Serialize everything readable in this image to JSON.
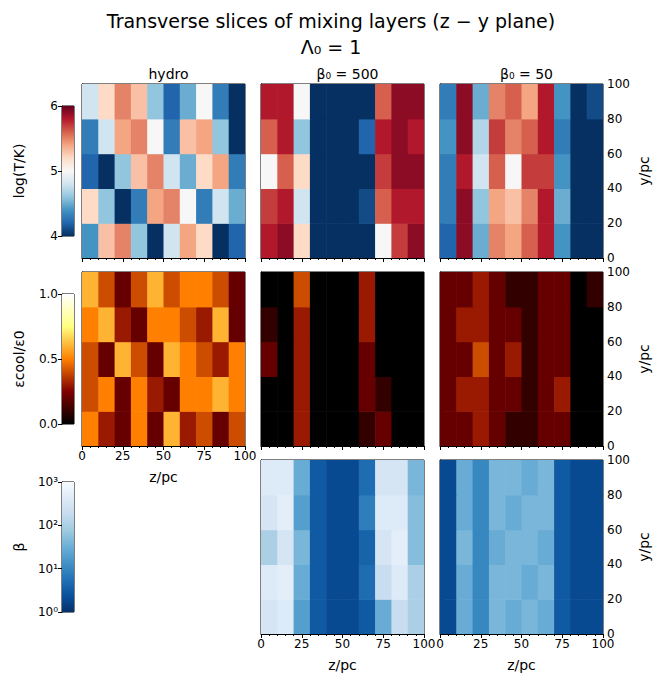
{
  "chart_data": {
    "type": "heatmap",
    "title": "Transverse slices of mixing layers (z − y plane)",
    "subtitle": "Λ₀ = 1",
    "column_titles": [
      "hydro",
      "β₀ = 500",
      "β₀ = 50"
    ],
    "xlabel": "z/pc",
    "ylabel": "y/pc",
    "xlim": [
      0,
      100
    ],
    "xticks": [
      0,
      25,
      50,
      75,
      100
    ],
    "ylim": [
      0,
      100
    ],
    "yticks": [
      0,
      20,
      40,
      60,
      80,
      100
    ],
    "x": [
      5,
      15,
      25,
      35,
      45,
      55,
      65,
      75,
      85,
      95
    ],
    "y": [
      10,
      30,
      50,
      70,
      90
    ],
    "rows": [
      {
        "colorbar": {
          "label": "log(T/K)",
          "range": [
            4,
            6
          ],
          "ticks": [
            4,
            5,
            6
          ],
          "colors": [
            "#053061",
            "#2166ac",
            "#4393c3",
            "#92c5de",
            "#d1e5f0",
            "#f7f7f7",
            "#fddbc7",
            "#f4a582",
            "#d6604d",
            "#b2182b",
            "#67001f"
          ]
        },
        "cells": [
          [
            [
              4.4,
              5.3,
              5.5,
              4.6,
              4.0,
              4.8,
              5.4,
              5.2,
              4.0,
              4.2
            ],
            [
              5.2,
              4.6,
              4.0,
              4.3,
              5.4,
              5.5,
              5.0,
              4.3,
              4.8,
              4.5
            ],
            [
              4.2,
              4.0,
              4.6,
              5.3,
              5.5,
              4.8,
              4.5,
              5.2,
              5.4,
              4.3
            ],
            [
              4.3,
              4.8,
              5.4,
              5.5,
              5.0,
              4.3,
              5.3,
              5.4,
              4.6,
              4.0
            ],
            [
              4.8,
              5.2,
              5.5,
              5.3,
              4.6,
              4.2,
              4.5,
              5.0,
              4.3,
              4.0
            ]
          ],
          [
            [
              5.8,
              5.9,
              5.2,
              4.0,
              4.0,
              4.0,
              4.0,
              5.0,
              5.7,
              5.9
            ],
            [
              5.7,
              5.8,
              4.8,
              4.0,
              4.0,
              4.0,
              4.1,
              5.6,
              5.8,
              5.8
            ],
            [
              5.0,
              5.6,
              5.2,
              4.0,
              4.0,
              4.0,
              4.0,
              5.7,
              5.9,
              5.9
            ],
            [
              5.6,
              5.8,
              4.6,
              4.0,
              4.0,
              4.0,
              4.2,
              5.8,
              5.9,
              5.8
            ],
            [
              5.8,
              5.8,
              5.0,
              4.0,
              4.0,
              4.0,
              4.0,
              5.6,
              5.9,
              5.9
            ]
          ],
          [
            [
              4.2,
              5.9,
              4.5,
              5.5,
              5.4,
              5.6,
              5.8,
              4.4,
              4.0,
              4.0
            ],
            [
              4.3,
              5.9,
              4.6,
              5.4,
              5.3,
              5.5,
              5.8,
              4.5,
              4.0,
              4.0
            ],
            [
              4.3,
              5.8,
              4.8,
              5.6,
              5.0,
              5.7,
              5.7,
              4.4,
              4.0,
              4.0
            ],
            [
              4.4,
              5.9,
              4.7,
              5.7,
              5.5,
              5.6,
              5.8,
              4.3,
              4.0,
              4.0
            ],
            [
              4.3,
              5.9,
              4.5,
              5.5,
              5.6,
              5.4,
              5.8,
              4.4,
              4.0,
              4.1
            ]
          ]
        ]
      },
      {
        "colorbar": {
          "label": "εcool/ε0",
          "range": [
            0,
            1
          ],
          "ticks": [
            {
              "value": 0,
              "label": "0.0"
            },
            {
              "value": 0.5,
              "label": "0.5"
            },
            {
              "value": 1,
              "label": "1.0"
            }
          ],
          "colors": [
            "#000000",
            "#800000",
            "#ff8000",
            "#ffff80",
            "#ffffff"
          ]
        },
        "cells": [
          [
            [
              0.5,
              0.3,
              0.2,
              0.5,
              0.2,
              0.6,
              0.3,
              0.4,
              0.2,
              0.4
            ],
            [
              0.4,
              0.5,
              0.2,
              0.5,
              0.3,
              0.2,
              0.5,
              0.5,
              0.6,
              0.5
            ],
            [
              0.4,
              0.2,
              0.6,
              0.4,
              0.2,
              0.6,
              0.5,
              0.4,
              0.3,
              0.5
            ],
            [
              0.5,
              0.6,
              0.3,
              0.2,
              0.5,
              0.5,
              0.4,
              0.3,
              0.6,
              0.2
            ],
            [
              0.6,
              0.4,
              0.2,
              0.4,
              0.6,
              0.4,
              0.5,
              0.5,
              0.4,
              0.2
            ]
          ],
          [
            [
              0.0,
              0.0,
              0.3,
              0.0,
              0.0,
              0.0,
              0.1,
              0.2,
              0.0,
              0.0
            ],
            [
              0.0,
              0.0,
              0.3,
              0.0,
              0.0,
              0.0,
              0.2,
              0.1,
              0.0,
              0.0
            ],
            [
              0.2,
              0.0,
              0.3,
              0.0,
              0.0,
              0.0,
              0.2,
              0.0,
              0.0,
              0.0
            ],
            [
              0.1,
              0.0,
              0.3,
              0.0,
              0.0,
              0.0,
              0.3,
              0.0,
              0.0,
              0.0
            ],
            [
              0.0,
              0.0,
              0.4,
              0.0,
              0.0,
              0.0,
              0.3,
              0.0,
              0.0,
              0.0
            ]
          ],
          [
            [
              0.2,
              0.2,
              0.3,
              0.2,
              0.1,
              0.1,
              0.2,
              0.2,
              0.0,
              0.0
            ],
            [
              0.2,
              0.3,
              0.3,
              0.2,
              0.2,
              0.1,
              0.2,
              0.3,
              0.0,
              0.0
            ],
            [
              0.2,
              0.2,
              0.4,
              0.2,
              0.3,
              0.1,
              0.2,
              0.2,
              0.0,
              0.0
            ],
            [
              0.2,
              0.3,
              0.3,
              0.2,
              0.2,
              0.1,
              0.2,
              0.2,
              0.0,
              0.0
            ],
            [
              0.2,
              0.2,
              0.3,
              0.2,
              0.1,
              0.1,
              0.2,
              0.2,
              0.0,
              0.1
            ]
          ]
        ]
      },
      {
        "colorbar": {
          "label": "β",
          "range": [
            1,
            1000
          ],
          "log": true,
          "ticks": [
            {
              "value": 1,
              "label": "10⁰"
            },
            {
              "value": 10,
              "label": "10¹"
            },
            {
              "value": 100,
              "label": "10²"
            },
            {
              "value": 1000,
              "label": "10³"
            }
          ],
          "colors": [
            "#08306b",
            "#08519c",
            "#2171b5",
            "#4292c6",
            "#6baed6",
            "#9ecae1",
            "#c6dbef",
            "#deebf7",
            "#f7fbff"
          ]
        },
        "cells": [
          null,
          [
            [
              300,
              400,
              20,
              3,
              2,
              2,
              3,
              30,
              200,
              100
            ],
            [
              400,
              500,
              30,
              3,
              2,
              2,
              5,
              200,
              400,
              100
            ],
            [
              100,
              300,
              40,
              3,
              2,
              2,
              4,
              300,
              500,
              50
            ],
            [
              300,
              500,
              20,
              3,
              2,
              2,
              8,
              400,
              400,
              50
            ],
            [
              400,
              400,
              30,
              3,
              2,
              2,
              5,
              300,
              300,
              40
            ]
          ],
          [
            [
              2,
              30,
              10,
              40,
              30,
              40,
              30,
              3,
              2,
              2
            ],
            [
              2,
              30,
              10,
              40,
              40,
              30,
              40,
              3,
              2,
              2
            ],
            [
              2,
              40,
              10,
              30,
              40,
              40,
              30,
              3,
              2,
              2
            ],
            [
              2,
              30,
              10,
              40,
              30,
              40,
              40,
              3,
              2,
              2
            ],
            [
              2,
              30,
              10,
              40,
              40,
              30,
              40,
              3,
              2,
              2
            ]
          ]
        ]
      }
    ]
  }
}
